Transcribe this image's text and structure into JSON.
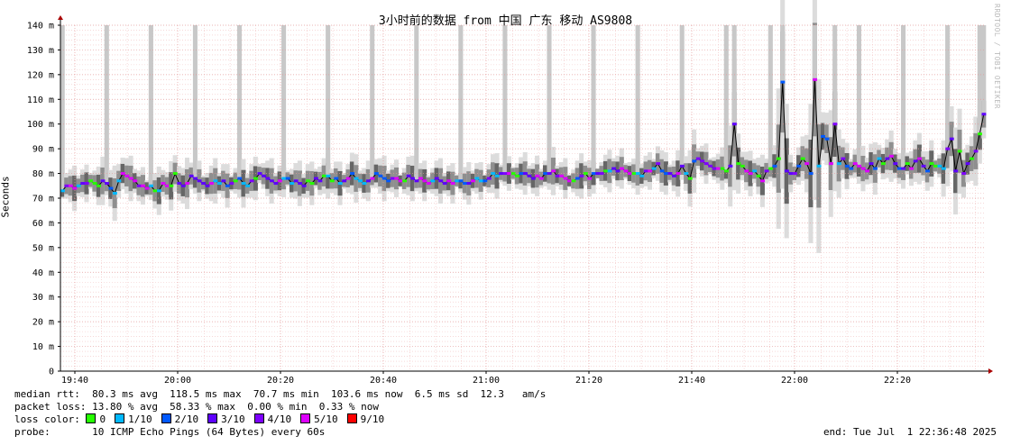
{
  "chart_data": {
    "type": "line",
    "title": "3小时前的数据 from 中国 广东 移动 AS9808",
    "ylabel": "Seconds",
    "ylim": [
      0,
      140
    ],
    "y_ticks": [
      "0",
      "10 m",
      "20 m",
      "30 m",
      "40 m",
      "50 m",
      "60 m",
      "70 m",
      "80 m",
      "90 m",
      "100 m",
      "110 m",
      "120 m",
      "130 m",
      "140 m"
    ],
    "x_ticks": [
      "19:40",
      "20:00",
      "20:20",
      "20:40",
      "21:00",
      "21:20",
      "21:40",
      "22:00",
      "22:20"
    ],
    "grid": true,
    "series": [
      {
        "values": [
          73,
          75,
          75,
          74,
          75,
          76,
          76,
          77,
          76,
          75,
          77,
          76,
          74,
          72,
          77,
          80,
          79,
          78,
          77,
          75,
          75,
          74,
          75,
          73,
          73,
          76,
          75,
          75,
          80,
          76,
          75,
          76,
          79,
          78,
          77,
          76,
          75,
          76,
          77,
          76,
          77,
          75,
          76,
          77,
          78,
          76,
          75,
          77,
          78,
          80,
          79,
          78,
          77,
          76,
          77,
          78,
          78,
          76,
          77,
          76,
          75,
          77,
          76,
          78,
          77,
          79,
          79,
          77,
          78,
          76,
          77,
          78,
          80,
          78,
          77,
          76,
          77,
          78,
          80,
          79,
          78,
          77,
          78,
          78,
          77,
          77,
          79,
          78,
          77,
          78,
          77,
          76,
          77,
          78,
          77,
          76,
          77,
          76,
          77,
          77,
          76,
          76,
          77,
          78,
          77,
          77,
          78,
          80,
          79,
          80,
          80,
          80,
          80,
          79,
          80,
          80,
          79,
          78,
          79,
          78,
          80,
          80,
          81,
          79,
          79,
          78,
          77,
          77,
          78,
          79,
          80,
          78,
          80,
          80,
          80,
          81,
          81,
          82,
          81,
          82,
          81,
          80,
          80,
          80,
          79,
          81,
          81,
          82,
          84,
          81,
          80,
          80,
          79,
          80,
          83,
          80,
          78,
          85,
          86,
          85,
          84,
          83,
          82,
          82,
          82,
          81,
          83,
          100,
          84,
          83,
          81,
          80,
          81,
          79,
          77,
          81,
          82,
          83,
          86,
          117,
          81,
          80,
          80,
          83,
          86,
          84,
          80,
          118,
          83,
          95,
          94,
          84,
          100,
          84,
          86,
          83,
          82,
          84,
          83,
          82,
          81,
          84,
          82,
          86,
          84,
          86,
          87,
          84,
          82,
          82,
          84,
          82,
          85,
          86,
          83,
          81,
          84,
          83,
          83,
          82,
          90,
          94,
          81,
          89,
          80,
          84,
          86,
          89,
          96,
          104
        ]
      }
    ],
    "stats": {
      "median_rtt": "median rtt:  80.3 ms avg  118.5 ms max  70.7 ms min  103.6 ms now  6.5 ms sd  12.3   am/s",
      "packet_loss": "packet loss: 13.80 % avg  58.33 % max  0.00 % min  0.33 % now",
      "loss_color_label": "loss color:",
      "probe": "probe:       10 ICMP Echo Pings (64 Bytes) every 60s",
      "end": "end: Tue Jul  1 22:36:48 2025"
    },
    "loss_colors": [
      {
        "label": "0",
        "color": "#26ff00"
      },
      {
        "label": "1/10",
        "color": "#00b8ff"
      },
      {
        "label": "2/10",
        "color": "#0059ff"
      },
      {
        "label": "3/10",
        "color": "#5e00ff"
      },
      {
        "label": "4/10",
        "color": "#7e00ff"
      },
      {
        "label": "5/10",
        "color": "#dd00ff"
      },
      {
        "label": "9/10",
        "color": "#ff0000"
      }
    ],
    "watermark": "RRDTOOL / TOBI OETIKER"
  }
}
